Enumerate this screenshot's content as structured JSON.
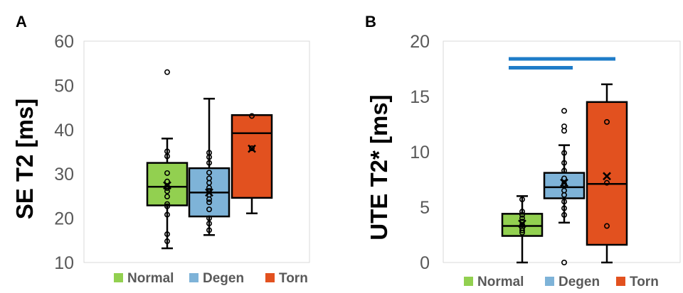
{
  "colors": {
    "Normal": "#92d050",
    "Degen": "#7eb3d8",
    "Torn": "#e2511f",
    "sig_bar": "#1f7cc8"
  },
  "chart_data": [
    {
      "panel": "A",
      "type": "box",
      "ylabel": "SE T2  [ms]",
      "ylim": [
        10,
        60
      ],
      "yticks": [
        10,
        20,
        30,
        40,
        50,
        60
      ],
      "grid": false,
      "legend": {
        "position": "bottom",
        "entries": [
          "Normal",
          "Degen",
          "Torn"
        ]
      },
      "series": [
        {
          "name": "Normal",
          "whisker_low": 13.2,
          "q1": 22.9,
          "median": 27.1,
          "q3": 32.5,
          "whisker_high": 38.0,
          "mean": 27.4,
          "points": [
            53.0,
            35.1,
            34.0,
            30.2,
            28.3,
            27.2,
            26.8,
            26.1,
            24.9,
            23.2,
            22.7,
            20.8,
            16.4,
            14.8
          ]
        },
        {
          "name": "Degen",
          "whisker_low": 16.2,
          "q1": 20.4,
          "median": 25.8,
          "q3": 31.3,
          "whisker_high": 47.0,
          "mean": 25.8,
          "points": [
            34.8,
            33.8,
            32.5,
            30.3,
            29.0,
            28.0,
            26.9,
            26.2,
            25.3,
            24.3,
            23.6,
            22.0,
            20.0,
            18.8,
            17.3
          ]
        },
        {
          "name": "Torn",
          "whisker_low": 21.1,
          "q1": 24.6,
          "median": 39.2,
          "q3": 43.3,
          "whisker_high": 43.3,
          "mean": 35.7,
          "points": [
            43.1,
            35.8
          ]
        }
      ]
    },
    {
      "panel": "B",
      "type": "box",
      "ylabel": "UTE T2*  [ms]",
      "ylim": [
        0,
        20
      ],
      "yticks": [
        0,
        5,
        10,
        15,
        20
      ],
      "grid": false,
      "legend": {
        "position": "bottom",
        "entries": [
          "Normal",
          "Degen",
          "Torn"
        ]
      },
      "significance": [
        {
          "from": "Normal",
          "to": "Degen",
          "y": 17.6
        },
        {
          "from": "Normal",
          "to": "Torn",
          "y": 18.4
        }
      ],
      "series": [
        {
          "name": "Normal",
          "whisker_low": 0.0,
          "q1": 2.4,
          "median": 3.3,
          "q3": 4.4,
          "whisker_high": 6.0,
          "mean": 3.5,
          "points": [
            5.7,
            4.6,
            4.3,
            4.0,
            3.7,
            3.4,
            3.1,
            2.9,
            2.7
          ]
        },
        {
          "name": "Degen",
          "whisker_low": 3.6,
          "q1": 5.8,
          "median": 6.8,
          "q3": 8.1,
          "whisker_high": 10.6,
          "mean": 7.2,
          "points": [
            13.7,
            12.3,
            11.9,
            9.9,
            9.0,
            8.3,
            7.6,
            7.1,
            6.5,
            6.1,
            5.5,
            4.9,
            4.3,
            0.0
          ]
        },
        {
          "name": "Torn",
          "whisker_low": 0.0,
          "q1": 1.6,
          "median": 7.1,
          "q3": 14.5,
          "whisker_high": 16.1,
          "mean": 7.8,
          "points": [
            12.7,
            7.2,
            3.3
          ]
        }
      ]
    }
  ]
}
